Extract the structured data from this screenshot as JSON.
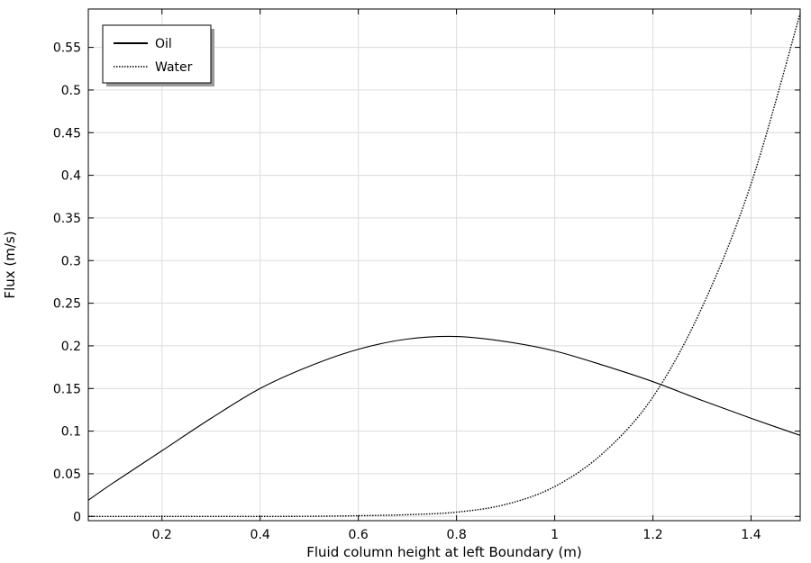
{
  "chart_data": {
    "type": "line",
    "title": "",
    "xlabel": "Fluid column height at left Boundary (m)",
    "ylabel": "Flux (m/s)",
    "xlim": [
      0.05,
      1.5
    ],
    "ylim": [
      -0.005,
      0.595
    ],
    "xticks": [
      0.2,
      0.4,
      0.6,
      0.8,
      1.0,
      1.2,
      1.4
    ],
    "xtick_labels": [
      "0.2",
      "0.4",
      "0.6",
      "0.8",
      "1",
      "1.2",
      "1.4"
    ],
    "yticks": [
      0,
      0.05,
      0.1,
      0.15,
      0.2,
      0.25,
      0.3,
      0.35,
      0.4,
      0.45,
      0.5,
      0.55
    ],
    "ytick_labels": [
      "0",
      "0.05",
      "0.1",
      "0.15",
      "0.2",
      "0.25",
      "0.3",
      "0.35",
      "0.4",
      "0.45",
      "0.5",
      "0.55"
    ],
    "grid": true,
    "legend_position": "top-left",
    "x": [
      0.05,
      0.1,
      0.2,
      0.3,
      0.4,
      0.5,
      0.6,
      0.7,
      0.8,
      0.9,
      1.0,
      1.1,
      1.2,
      1.3,
      1.4,
      1.5
    ],
    "series": [
      {
        "name": "Oil",
        "style": "solid",
        "values": [
          0.019,
          0.039,
          0.077,
          0.115,
          0.15,
          0.176,
          0.196,
          0.208,
          0.211,
          0.205,
          0.194,
          0.177,
          0.158,
          0.136,
          0.115,
          0.095
        ]
      },
      {
        "name": "Water",
        "style": "dotted",
        "values": [
          0.0,
          0.0,
          0.0,
          0.0,
          0.0,
          0.0001,
          0.0008,
          0.002,
          0.005,
          0.014,
          0.035,
          0.075,
          0.14,
          0.245,
          0.39,
          0.59
        ]
      }
    ]
  }
}
